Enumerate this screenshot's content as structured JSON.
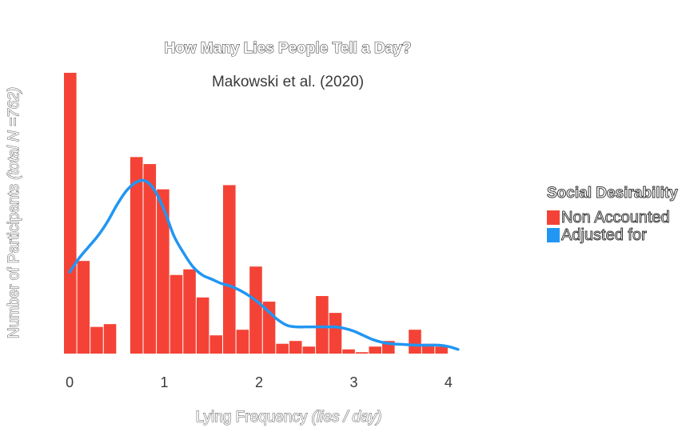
{
  "chart_data": {
    "type": "bar",
    "title": "How Many Lies People Tell a Day?",
    "subtitle": "Makowski et al. (2020)",
    "xlabel": "Lying Frequency",
    "xlabel_unit": "(lies / day)",
    "ylabel": "Number of Participants",
    "ylabel_note": "(total N =762)",
    "xlim": [
      -0.06,
      4.22
    ],
    "ylim": [
      0,
      100
    ],
    "xticks": [
      "0",
      "1",
      "2",
      "3",
      "4"
    ],
    "grid": false,
    "legend": {
      "title": "Social Desirability",
      "placement": "right",
      "entries": [
        {
          "label": "Non Accounted",
          "color": "#f44336"
        },
        {
          "label": "Adjusted for",
          "color": "#2196f3"
        }
      ]
    },
    "histogram": {
      "name": "Non Accounted",
      "color": "#f44336",
      "bin_start": -0.06,
      "bin_width": 0.14,
      "counts": [
        100,
        33,
        9.5,
        10.5,
        0,
        70,
        67.5,
        58.5,
        28,
        30,
        20,
        6.5,
        60,
        8.5,
        31,
        18.5,
        3.5,
        4.5,
        2.5,
        20.5,
        14.5,
        1.5,
        0.5,
        2.5,
        4.5,
        0,
        8.5,
        3.5,
        2.5
      ]
    },
    "density": {
      "name": "Adjusted for",
      "color": "#2196f3",
      "x": [
        0,
        0.1,
        0.2,
        0.3,
        0.4,
        0.5,
        0.6,
        0.7,
        0.8,
        0.9,
        1.0,
        1.1,
        1.2,
        1.3,
        1.4,
        1.5,
        1.6,
        1.7,
        1.8,
        1.9,
        2.0,
        2.1,
        2.2,
        2.3,
        2.4,
        2.5,
        2.6,
        2.7,
        2.8,
        2.9,
        3.0,
        3.1,
        3.2,
        3.3,
        3.4,
        3.5,
        3.6,
        3.7,
        3.8,
        3.9,
        4.0,
        4.1
      ],
      "y": [
        29,
        34,
        38,
        42,
        47,
        53,
        58,
        61,
        61.5,
        58,
        51,
        42,
        36,
        31,
        28,
        26.5,
        25,
        24,
        22.5,
        20.5,
        18,
        15,
        12,
        10,
        9.5,
        9.5,
        9.5,
        9.5,
        9.5,
        9,
        8,
        6.5,
        5,
        4,
        3.5,
        3.3,
        3.1,
        3.0,
        3.0,
        3.0,
        2.5,
        1.5
      ]
    }
  }
}
